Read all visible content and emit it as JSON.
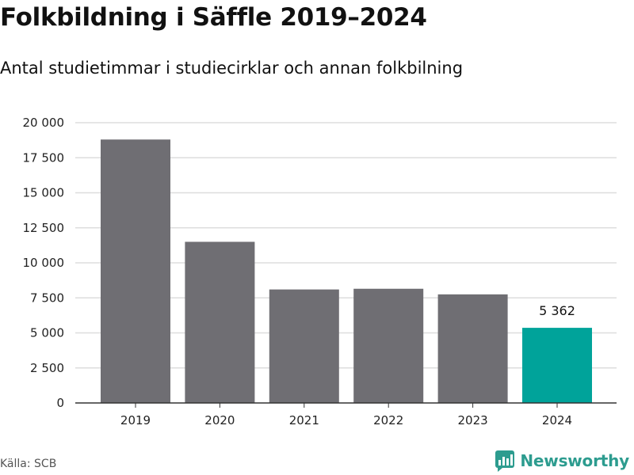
{
  "page": {
    "title": "Folkbildning i Säffle 2019–2024",
    "subtitle": "Antal studietimmar i studiecirklar och annan folkbilning",
    "source": "Källa: SCB",
    "brand": "Newsworthy"
  },
  "colors": {
    "bar": "#6f6e73",
    "highlight": "#00a39a",
    "grid": "#dddddd",
    "axis": "#333333",
    "brand": "#2d9c8f"
  },
  "chart_data": {
    "type": "bar",
    "categories": [
      "2019",
      "2020",
      "2021",
      "2022",
      "2023",
      "2024"
    ],
    "values": [
      18800,
      11500,
      8100,
      8150,
      7750,
      5362
    ],
    "highlight_index": 5,
    "data_labels": [
      {
        "index": 5,
        "text": "5 362"
      }
    ],
    "ylim": [
      0,
      20000
    ],
    "y_ticks": [
      0,
      2500,
      5000,
      7500,
      10000,
      12500,
      15000,
      17500,
      20000
    ],
    "y_tick_labels": [
      "0",
      "2 500",
      "5 000",
      "7 500",
      "10 000",
      "12 500",
      "15 000",
      "17 500",
      "20 000"
    ],
    "grid": true,
    "legend": "none"
  }
}
